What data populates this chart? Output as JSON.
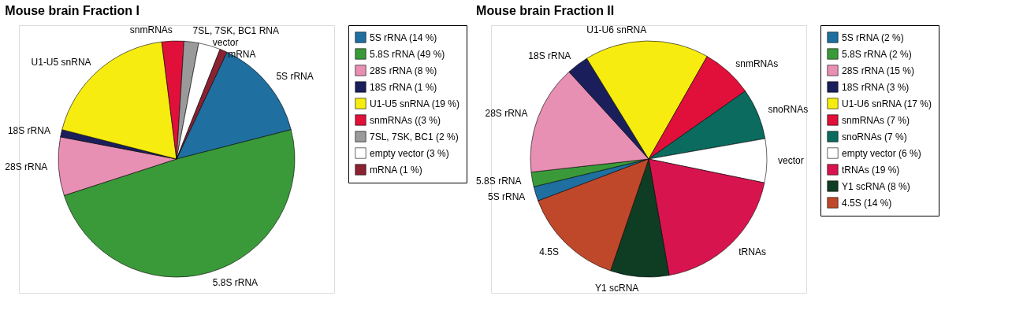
{
  "chart_data": [
    {
      "type": "pie",
      "title": "Mouse brain Fraction I",
      "legend": "right",
      "categories": [
        "5S rRNA (14 %)",
        "5.8S rRNA (49 %)",
        "28S rRNA (8 %)",
        "18S rRNA (1 %)",
        "U1-U5 snRNA (19 %)",
        "snmRNAs ((3 %)",
        "7SL, 7SK, BC1 (2 %)",
        "empty vector (3 %)",
        "mRNA (1 %)"
      ],
      "values": [
        14,
        49,
        8,
        1,
        19,
        3,
        2,
        3,
        1
      ],
      "colors": [
        "#1f6fa0",
        "#3a9a3a",
        "#e88fb4",
        "#1a1f5c",
        "#f7ec10",
        "#e0103a",
        "#9a9a9a",
        "#ffffff",
        "#8b2232"
      ],
      "annotations": [
        {
          "text": "5S rRNA",
          "x": "5S rRNA (14 %)"
        },
        {
          "text": "5.8S rRNA",
          "x": "5.8S rRNA (49 %)"
        },
        {
          "text": "28S rRNA",
          "x": "28S rRNA (8 %)"
        },
        {
          "text": "18S rRNA",
          "x": "18S rRNA (1 %)"
        },
        {
          "text": "U1-U5 snRNA",
          "x": "U1-U5 snRNA (19 %)"
        },
        {
          "text": "snmRNAs",
          "x": "snmRNAs ((3 %)"
        },
        {
          "text": "7SL, 7SK, BC1 RNA",
          "x": "7SL, 7SK, BC1 (2 %)"
        },
        {
          "text": "vector",
          "x": "empty vector (3 %)"
        },
        {
          "text": "mRNA",
          "x": "mRNA (1 %)"
        }
      ]
    },
    {
      "type": "pie",
      "title": "Mouse brain Fraction II",
      "legend": "right",
      "categories": [
        "5S rRNA (2 %)",
        "5.8S rRNA (2 %)",
        "28S rRNA (15 %)",
        "18S rRNA (3 %)",
        "U1-U6 snRNA (17 %)",
        "snmRNAs (7 %)",
        "snoRNAs (7 %)",
        "empty vector (6 %)",
        "tRNAs (19 %)",
        "Y1 scRNA (8 %)",
        "4.5S (14 %)"
      ],
      "values": [
        2,
        2,
        15,
        3,
        17,
        7,
        7,
        6,
        19,
        8,
        14
      ],
      "colors": [
        "#1f6fa0",
        "#3a9a3a",
        "#e88fb4",
        "#1a1f5c",
        "#f7ec10",
        "#e0103a",
        "#0a6b5e",
        "#ffffff",
        "#d8144e",
        "#0f3d24",
        "#c0482a"
      ],
      "annotations": [
        {
          "text": "5S rRNA",
          "x": "5S rRNA (2 %)"
        },
        {
          "text": "5.8S rRNA",
          "x": "5.8S rRNA (2 %)"
        },
        {
          "text": "28S rRNA",
          "x": "28S rRNA (15 %)"
        },
        {
          "text": "18S rRNA",
          "x": "18S rRNA (3 %)"
        },
        {
          "text": "U1-U6 snRNA",
          "x": "U1-U6 snRNA (17 %)"
        },
        {
          "text": "snmRNAs",
          "x": "snmRNAs (7 %)"
        },
        {
          "text": "snoRNAs",
          "x": "snoRNAs (7 %)"
        },
        {
          "text": "vector",
          "x": "empty vector (6 %)"
        },
        {
          "text": "tRNAs",
          "x": "tRNAs (19 %)"
        },
        {
          "text": "Y1 scRNA",
          "x": "Y1 scRNA (8 %)"
        },
        {
          "text": "4.5S",
          "x": "4.5S (14 %)"
        }
      ]
    }
  ]
}
